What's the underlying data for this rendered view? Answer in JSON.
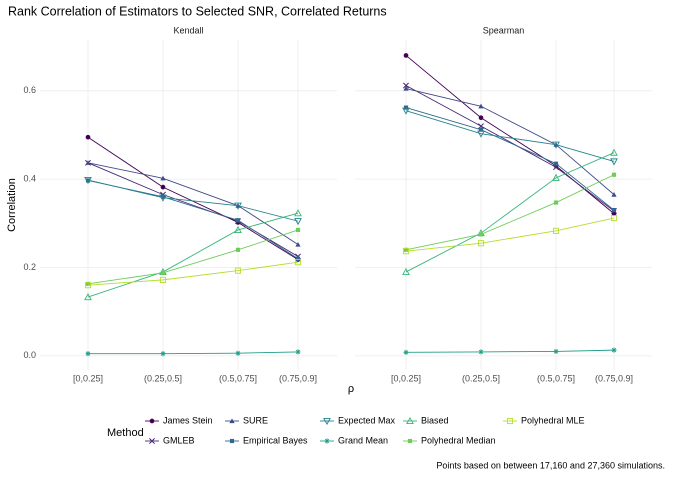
{
  "chart_data": {
    "type": "line",
    "title": "Rank Correlation of Estimators to Selected SNR, Correlated Returns",
    "x_label": "ρ",
    "y_label": "Correlation",
    "legend_title": "Method",
    "caption": "Points based on between 17,160 and 27,360 simulations.",
    "categories": [
      "[0,0.25]",
      "(0.25,0.5]",
      "(0.5,0.75]",
      "(0.75,0.9]"
    ],
    "ylim": [
      -0.032,
      0.715
    ],
    "yticks": [
      {
        "value": 0,
        "label": "0.0"
      },
      0.2,
      0.4,
      0.6
    ],
    "grid": true,
    "series": [
      {
        "name": "James Stein",
        "color": "#440154",
        "marker": "circle"
      },
      {
        "name": "GMLEB",
        "color": "#482878",
        "marker": "x"
      },
      {
        "name": "SURE",
        "color": "#3e4a89",
        "marker": "triangle"
      },
      {
        "name": "Empirical Bayes",
        "color": "#31688e",
        "marker": "square"
      },
      {
        "name": "Expected Max",
        "color": "#26828e",
        "marker": "triangle-down-open"
      },
      {
        "name": "Grand Mean",
        "color": "#1f9e89",
        "marker": "asterisk"
      },
      {
        "name": "Biased",
        "color": "#35b779",
        "marker": "triangle-open"
      },
      {
        "name": "Polyhedral Median",
        "color": "#6dcd59",
        "marker": "square"
      },
      {
        "name": "Polyhedral MLE",
        "color": "#b4de2c",
        "marker": "square-open"
      }
    ],
    "panels": [
      {
        "name": "Kendall",
        "values": [
          [
            0.495,
            0.382,
            0.302,
            0.218
          ],
          [
            0.437,
            0.365,
            0.305,
            0.225
          ],
          [
            0.437,
            0.402,
            0.34,
            0.252
          ],
          [
            0.397,
            0.36,
            0.307,
            0.22
          ],
          [
            0.398,
            0.358,
            0.34,
            0.305
          ],
          [
            0.005,
            0.005,
            0.006,
            0.009
          ],
          [
            0.133,
            0.19,
            0.285,
            0.323
          ],
          [
            0.163,
            0.188,
            0.24,
            0.285
          ],
          [
            0.16,
            0.172,
            0.193,
            0.212
          ]
        ]
      },
      {
        "name": "Spearman",
        "values": [
          [
            0.68,
            0.539,
            0.43,
            0.322
          ],
          [
            0.612,
            0.52,
            0.427,
            0.328
          ],
          [
            0.605,
            0.565,
            0.478,
            0.365
          ],
          [
            0.562,
            0.512,
            0.435,
            0.33
          ],
          [
            0.555,
            0.503,
            0.478,
            0.44
          ],
          [
            0.008,
            0.009,
            0.01,
            0.013
          ],
          [
            0.19,
            0.278,
            0.403,
            0.46
          ],
          [
            0.24,
            0.275,
            0.347,
            0.41
          ],
          [
            0.237,
            0.255,
            0.283,
            0.312
          ]
        ]
      }
    ]
  }
}
